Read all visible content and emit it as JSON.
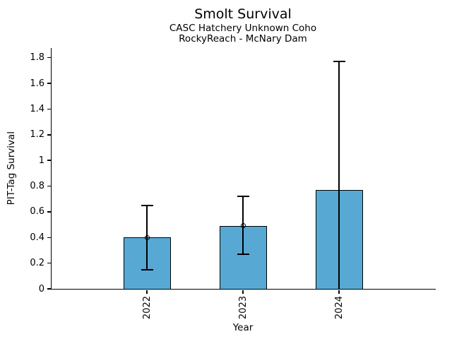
{
  "chart_data": {
    "type": "bar",
    "title": "Smolt Survival",
    "subtitle1": "CASC Hatchery Unknown Coho",
    "subtitle2": "RockyReach - McNary Dam",
    "xlabel": "Year",
    "ylabel": "PIT-Tag Survival",
    "categories": [
      "2022",
      "2023",
      "2024"
    ],
    "values": [
      0.4,
      0.49,
      0.77
    ],
    "error_low": [
      0.15,
      0.27,
      0.0
    ],
    "error_high": [
      0.65,
      0.72,
      1.77
    ],
    "point_markers": [
      true,
      true,
      false
    ],
    "ylim": [
      0,
      1.875
    ],
    "yticks": [
      0,
      0.2,
      0.4,
      0.6,
      0.8,
      1,
      1.2,
      1.4,
      1.6,
      1.8
    ],
    "ytick_labels": [
      "0",
      "0.2",
      "0.4",
      "0.6",
      "0.8",
      "1",
      "1.2",
      "1.4",
      "1.6",
      "1.8"
    ],
    "grid": false,
    "legend": "none",
    "bar_color": "#57A9D4",
    "bar_edge_color": "#000000",
    "error_color": "#000000",
    "background_color": "#ffffff"
  }
}
